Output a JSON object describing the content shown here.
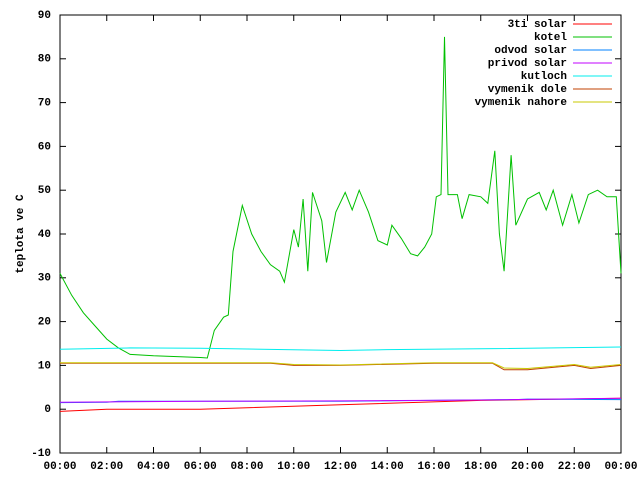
{
  "chart_data": {
    "type": "line",
    "y_label": "teplota ve C",
    "xlim": [
      0,
      24
    ],
    "ylim": [
      -10,
      90
    ],
    "xticks": [
      {
        "value": 0,
        "label": "00:00"
      },
      {
        "value": 2,
        "label": "02:00"
      },
      {
        "value": 4,
        "label": "04:00"
      },
      {
        "value": 6,
        "label": "06:00"
      },
      {
        "value": 8,
        "label": "08:00"
      },
      {
        "value": 10,
        "label": "10:00"
      },
      {
        "value": 12,
        "label": "12:00"
      },
      {
        "value": 14,
        "label": "14:00"
      },
      {
        "value": 16,
        "label": "16:00"
      },
      {
        "value": 18,
        "label": "18:00"
      },
      {
        "value": 20,
        "label": "20:00"
      },
      {
        "value": 22,
        "label": "22:00"
      },
      {
        "value": 24,
        "label": "00:00"
      }
    ],
    "yticks": [
      -10,
      0,
      10,
      20,
      30,
      40,
      50,
      60,
      70,
      80,
      90
    ],
    "legend": "top-right",
    "series": [
      {
        "name": "3ti solar",
        "color": "#ff0000",
        "x": [
          0,
          2,
          6,
          12,
          18,
          24
        ],
        "values": [
          -0.5,
          0,
          0,
          1,
          2,
          2.5
        ]
      },
      {
        "name": "kotel",
        "color": "#00c000",
        "x": [
          0,
          0.5,
          1,
          1.5,
          2,
          2.5,
          3,
          4,
          5,
          6,
          6.3,
          6.6,
          7,
          7.2,
          7.4,
          7.8,
          8.2,
          8.6,
          9,
          9.4,
          9.6,
          10,
          10.2,
          10.4,
          10.6,
          10.8,
          11.2,
          11.4,
          11.8,
          12.2,
          12.5,
          12.8,
          13.2,
          13.6,
          14,
          14.2,
          14.6,
          15,
          15.3,
          15.6,
          15.9,
          16.1,
          16.3,
          16.45,
          16.6,
          17,
          17.2,
          17.5,
          18,
          18.3,
          18.6,
          18.8,
          19,
          19.3,
          19.5,
          20,
          20.5,
          20.8,
          21.1,
          21.5,
          21.9,
          22.2,
          22.6,
          23,
          23.4,
          23.8,
          24
        ],
        "values": [
          31,
          26,
          22,
          19,
          16,
          14,
          12.5,
          12.2,
          12,
          11.8,
          11.7,
          18,
          21,
          21.5,
          36,
          46.5,
          40,
          36,
          33,
          31.5,
          29,
          41,
          37,
          48,
          31.5,
          49.5,
          43,
          33.5,
          45,
          49.5,
          45.5,
          50,
          45,
          38.5,
          37.5,
          42,
          39,
          35.5,
          35,
          37,
          40,
          48.5,
          49,
          85,
          49,
          49,
          43.5,
          49,
          48.5,
          47,
          59,
          40,
          31.5,
          58,
          42,
          48,
          49.5,
          45.5,
          50,
          42,
          49,
          42.5,
          49,
          50,
          48.5,
          48.5,
          31
        ]
      },
      {
        "name": "odvod solar",
        "color": "#0080ff",
        "x": [
          0,
          2,
          2.5,
          12,
          19.5,
          20,
          24
        ],
        "values": [
          1.5,
          1.6,
          1.8,
          1.8,
          2.2,
          2.3,
          2.2
        ]
      },
      {
        "name": "privod solar",
        "color": "#c000ff",
        "x": [
          0,
          6,
          12,
          18,
          24
        ],
        "values": [
          1.6,
          1.8,
          1.9,
          2.1,
          2.5
        ]
      },
      {
        "name": "kutloch",
        "color": "#00eeee",
        "x": [
          0,
          3,
          6,
          12,
          14,
          18,
          24
        ],
        "values": [
          13.7,
          14,
          13.9,
          13.4,
          13.6,
          13.8,
          14.2
        ]
      },
      {
        "name": "vymenik dole",
        "color": "#c04000",
        "x": [
          0,
          9,
          10,
          12,
          16,
          18.5,
          19,
          20,
          22,
          22.7,
          24
        ],
        "values": [
          10.5,
          10.5,
          10,
          10,
          10.5,
          10.5,
          9,
          9,
          10,
          9.3,
          10
        ]
      },
      {
        "name": "vymenik nahore",
        "color": "#c8c800",
        "x": [
          0,
          9,
          10,
          12,
          16,
          18.5,
          19,
          20,
          22,
          22.7,
          24
        ],
        "values": [
          10.6,
          10.6,
          10.2,
          10.1,
          10.6,
          10.6,
          9.4,
          9.3,
          10.2,
          9.6,
          10.2
        ]
      }
    ]
  }
}
